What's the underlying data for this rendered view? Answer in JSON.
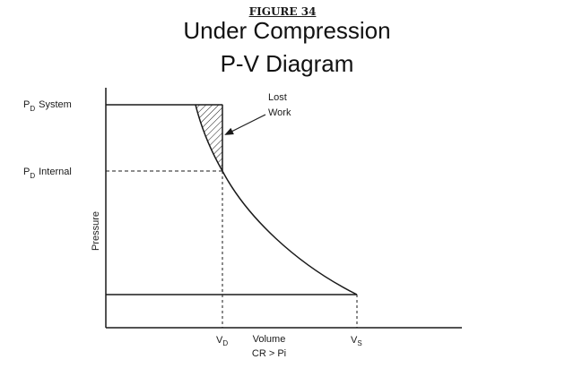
{
  "figure_label": "FIGURE 34",
  "title_line1": "Under Compression",
  "title_line2": "P-V Diagram",
  "annotations": {
    "pd_system": {
      "main": "P",
      "sub": "D",
      "rest": "System"
    },
    "pd_internal": {
      "main": "P",
      "sub": "D",
      "rest": "Internal"
    },
    "lost_work_line1": "Lost",
    "lost_work_line2": "Work"
  },
  "axes": {
    "y_label": "Pressure",
    "x_label": "Volume",
    "x_sublabel": "CR > Pi",
    "vd": {
      "main": "V",
      "sub": "D"
    },
    "vs": {
      "main": "V",
      "sub": "S"
    }
  },
  "colors": {
    "ink": "#1a1a1a",
    "background": "#ffffff"
  }
}
